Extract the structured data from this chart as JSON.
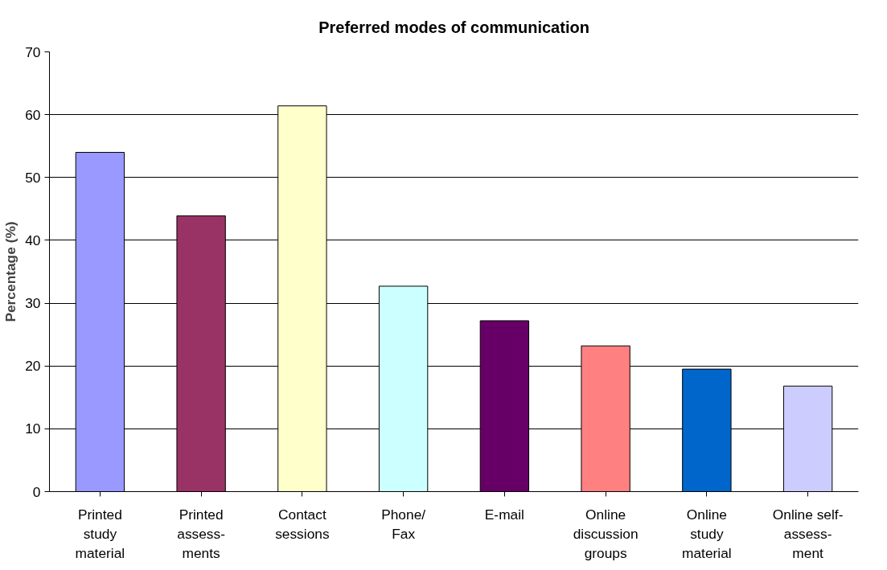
{
  "chart_data": {
    "type": "bar",
    "title": "Preferred modes of communication",
    "ylabel": "Percentage (%)",
    "categories": [
      "Printed\nstudy\nmaterial",
      "Printed\nassess-\nments",
      "Contact\nsessions",
      "Phone/\nFax",
      "E-mail",
      "Online\ndiscussion\ngroups",
      "Online\nstudy\nmaterial",
      "Online self-\nassess-\nment"
    ],
    "values": [
      54.0,
      43.9,
      61.4,
      32.7,
      27.2,
      23.2,
      19.5,
      16.8
    ],
    "colors": [
      "#9999ff",
      "#993366",
      "#ffffcc",
      "#ccffff",
      "#660066",
      "#ff8080",
      "#0066cc",
      "#ccccff"
    ],
    "ylim": [
      0,
      70
    ],
    "yticks": [
      0,
      10,
      20,
      30,
      40,
      50,
      60,
      70
    ],
    "grid": "y"
  }
}
